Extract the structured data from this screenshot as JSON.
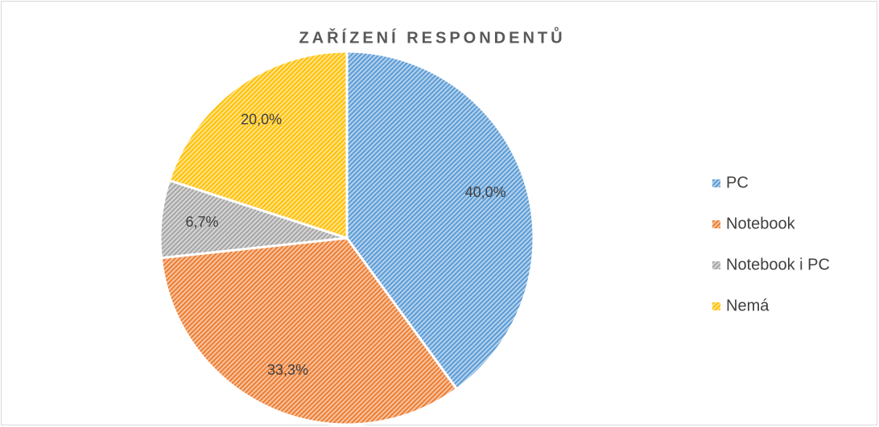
{
  "chart_data": {
    "type": "pie",
    "title": "ZAŘÍZENÍ RESPONDENTŮ",
    "categories": [
      "PC",
      "Notebook",
      "Notebook i PC",
      "Nemá"
    ],
    "values": [
      40.0,
      33.3,
      6.7,
      20.0
    ],
    "value_labels": [
      "40,0%",
      "33,3%",
      "6,7%",
      "20,0%"
    ],
    "colors": [
      "#5b9bd5",
      "#ed7d31",
      "#a5a5a5",
      "#ffc000"
    ],
    "legend": "right"
  }
}
